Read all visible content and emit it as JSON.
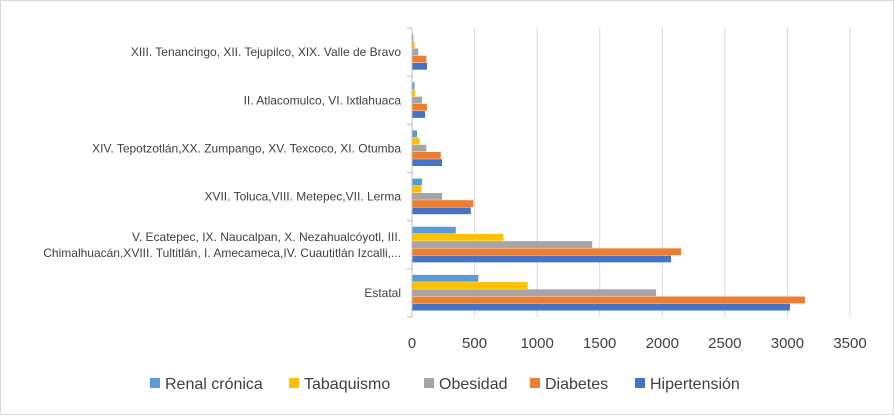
{
  "chart_data": {
    "type": "bar",
    "orientation": "horizontal",
    "categories": [
      "Estatal",
      "V. Ecatepec, IX. Naucalpan, X. Nezahualcóyotl, III. Chimalhuacán,XVIII. Tultitlán, I. Amecameca,IV. Cuautitlán Izcalli,...",
      "XVII. Toluca,VIII. Metepec,VII. Lerma",
      "XIV. Tepotzotlán,XX. Zumpango, XV. Texcoco, XI. Otumba",
      "II. Atlacomulco, VI. Ixtlahuaca",
      "XIII. Tenancingo, XII. Tejupilco, XIX.  Valle de Bravo"
    ],
    "category_label_lines": [
      [
        "Estatal"
      ],
      [
        "V. Ecatepec, IX. Naucalpan, X. Nezahualcóyotl, III.",
        "Chimalhuacán,XVIII. Tultitlán, I. Amecameca,IV. Cuautitlán Izcalli,..."
      ],
      [
        "XVII. Toluca,VIII. Metepec,VII. Lerma"
      ],
      [
        "XIV. Tepotzotlán,XX. Zumpango, XV. Texcoco, XI. Otumba"
      ],
      [
        "II. Atlacomulco, VI. Ixtlahuaca"
      ],
      [
        "XIII. Tenancingo, XII. Tejupilco, XIX.  Valle de Bravo"
      ]
    ],
    "series": [
      {
        "name": "Renal crónica",
        "color": "#5b9bd5",
        "values": [
          530,
          350,
          80,
          40,
          20,
          10
        ]
      },
      {
        "name": "Tabaquismo",
        "color": "#ffc000",
        "values": [
          925,
          730,
          75,
          60,
          25,
          20
        ]
      },
      {
        "name": "Obesidad",
        "color": "#a5a5a5",
        "values": [
          1950,
          1440,
          240,
          115,
          80,
          50
        ]
      },
      {
        "name": "Diabetes",
        "color": "#ed7d31",
        "values": [
          3140,
          2150,
          490,
          230,
          120,
          115
        ]
      },
      {
        "name": "Hipertensión",
        "color": "#4472c4",
        "values": [
          3020,
          2070,
          470,
          240,
          105,
          120
        ]
      }
    ],
    "xlim": [
      0,
      3500
    ],
    "xticks": [
      "0",
      "500",
      "1000",
      "1500",
      "2000",
      "2500",
      "3000",
      "3500"
    ],
    "grid": "vertical",
    "legend_position": "bottom",
    "title": "",
    "xlabel": "",
    "ylabel": ""
  }
}
